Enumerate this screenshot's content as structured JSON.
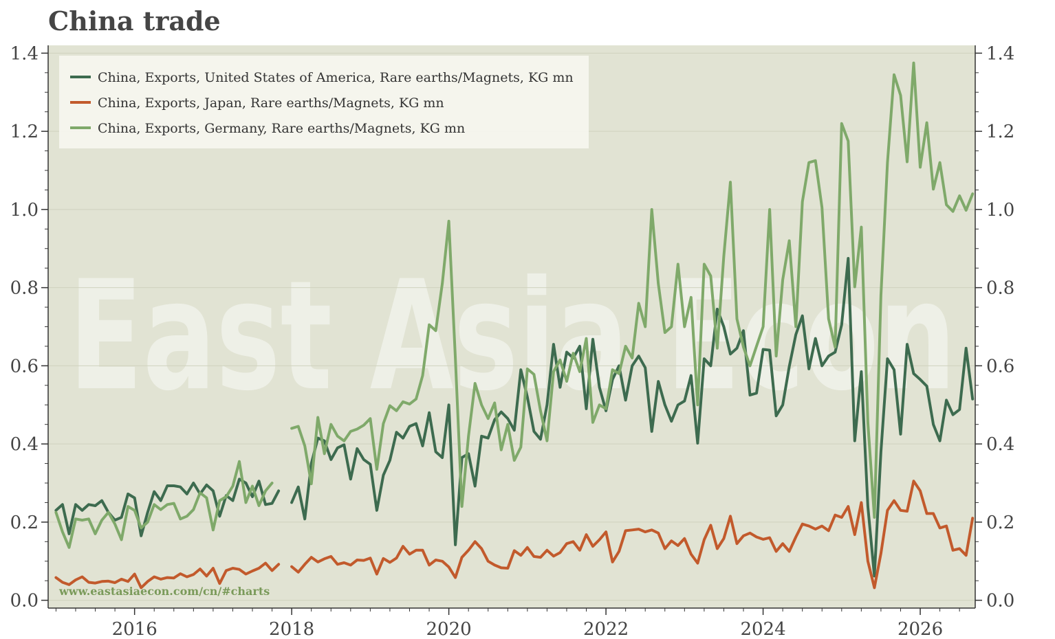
{
  "chart_data": {
    "type": "line",
    "title": "China trade",
    "watermark": "East Asia Econ",
    "source": "www.eastasiaecon.com/cn/#charts",
    "xlabel": "",
    "ylabel": "",
    "xlim": [
      2014.9,
      2026.7
    ],
    "ylim": [
      -0.02,
      1.42
    ],
    "x_ticks": [
      2016,
      2018,
      2020,
      2022,
      2024,
      2026
    ],
    "y_ticks": [
      0.0,
      0.2,
      0.4,
      0.6,
      0.8,
      1.0,
      1.2,
      1.4
    ],
    "y_tick_labels": [
      "0.0",
      "0.2",
      "0.4",
      "0.6",
      "0.8",
      "1.0",
      "1.2",
      "1.4"
    ],
    "grid": true,
    "legend_position": "top-left",
    "colors": {
      "plot_bg": "#e1e3d3",
      "grid": "#cfd2be"
    },
    "series": [
      {
        "name": "China, Exports, United States of America, Rare earths/Magnets, KG mn",
        "color": "#3d6b4f",
        "segments": [
          {
            "start": 2015.0,
            "values": [
              0.23,
              0.245,
              0.17,
              0.245,
              0.23,
              0.245,
              0.242,
              0.255,
              0.225,
              0.205,
              0.212,
              0.272,
              0.262,
              0.165,
              0.225,
              0.278,
              0.255,
              0.293,
              0.293,
              0.29,
              0.272,
              0.3,
              0.272,
              0.295,
              0.28,
              0.215,
              0.268,
              0.255,
              0.31,
              0.3,
              0.265,
              0.305,
              0.245,
              0.248,
              0.28
            ]
          },
          {
            "start": 2018.0,
            "values": [
              0.25,
              0.29,
              0.208,
              0.35,
              0.415,
              0.408,
              0.36,
              0.39,
              0.398,
              0.31,
              0.388,
              0.36,
              0.348,
              0.23,
              0.32,
              0.358,
              0.43,
              0.415,
              0.445,
              0.452,
              0.395,
              0.48,
              0.38,
              0.365,
              0.5,
              0.142,
              0.365,
              0.375,
              0.292,
              0.42,
              0.415,
              0.462,
              0.482,
              0.465,
              0.435,
              0.59,
              0.52,
              0.432,
              0.412,
              0.5,
              0.655,
              0.545,
              0.635,
              0.62,
              0.65,
              0.49,
              0.668,
              0.545,
              0.485,
              0.565,
              0.6,
              0.512,
              0.6,
              0.625,
              0.595,
              0.432,
              0.56,
              0.5,
              0.458,
              0.5,
              0.51,
              0.575,
              0.402,
              0.618,
              0.6,
              0.745,
              0.7,
              0.63,
              0.645,
              0.69,
              0.525,
              0.53,
              0.642,
              0.64,
              0.472,
              0.5,
              0.598,
              0.68,
              0.728,
              0.592,
              0.67,
              0.6,
              0.625,
              0.635,
              0.705,
              0.875,
              0.408,
              0.585,
              0.24,
              0.062,
              0.38,
              0.618,
              0.59,
              0.425,
              0.655,
              0.58,
              0.565,
              0.548,
              0.45,
              0.408,
              0.512,
              0.475,
              0.488,
              0.645,
              0.515
            ]
          }
        ]
      },
      {
        "name": "China, Exports, Japan, Rare earths/Magnets, KG mn",
        "color": "#c25a2c",
        "segments": [
          {
            "start": 2015.0,
            "values": [
              0.058,
              0.046,
              0.04,
              0.052,
              0.06,
              0.046,
              0.044,
              0.048,
              0.049,
              0.045,
              0.054,
              0.048,
              0.067,
              0.032,
              0.048,
              0.06,
              0.054,
              0.058,
              0.057,
              0.068,
              0.06,
              0.066,
              0.08,
              0.062,
              0.082,
              0.043,
              0.076,
              0.082,
              0.079,
              0.067,
              0.075,
              0.082,
              0.095,
              0.076,
              0.092
            ]
          },
          {
            "start": 2018.0,
            "values": [
              0.086,
              0.072,
              0.092,
              0.11,
              0.098,
              0.106,
              0.112,
              0.092,
              0.096,
              0.09,
              0.103,
              0.102,
              0.108,
              0.067,
              0.107,
              0.097,
              0.108,
              0.138,
              0.118,
              0.128,
              0.128,
              0.09,
              0.103,
              0.1,
              0.085,
              0.058,
              0.11,
              0.128,
              0.15,
              0.132,
              0.1,
              0.09,
              0.083,
              0.082,
              0.127,
              0.115,
              0.135,
              0.112,
              0.11,
              0.128,
              0.113,
              0.122,
              0.145,
              0.15,
              0.128,
              0.168,
              0.138,
              0.155,
              0.175,
              0.098,
              0.125,
              0.178,
              0.18,
              0.182,
              0.175,
              0.18,
              0.172,
              0.132,
              0.152,
              0.14,
              0.158,
              0.118,
              0.095,
              0.155,
              0.192,
              0.132,
              0.158,
              0.215,
              0.145,
              0.165,
              0.172,
              0.162,
              0.156,
              0.16,
              0.125,
              0.145,
              0.125,
              0.162,
              0.195,
              0.19,
              0.182,
              0.19,
              0.178,
              0.218,
              0.212,
              0.24,
              0.168,
              0.25,
              0.1,
              0.032,
              0.12,
              0.23,
              0.255,
              0.23,
              0.228,
              0.305,
              0.28,
              0.222,
              0.222,
              0.185,
              0.19,
              0.128,
              0.132,
              0.115,
              0.21
            ]
          }
        ]
      },
      {
        "name": "China, Exports, Germany, Rare earths/Magnets, KG mn",
        "color": "#7fa96a",
        "segments": [
          {
            "start": 2015.0,
            "values": [
              0.225,
              0.175,
              0.135,
              0.208,
              0.205,
              0.208,
              0.17,
              0.205,
              0.225,
              0.195,
              0.155,
              0.24,
              0.23,
              0.185,
              0.2,
              0.245,
              0.232,
              0.245,
              0.248,
              0.208,
              0.215,
              0.232,
              0.275,
              0.262,
              0.18,
              0.255,
              0.265,
              0.292,
              0.355,
              0.25,
              0.292,
              0.242,
              0.28,
              0.3
            ]
          },
          {
            "start": 2018.0,
            "values": [
              0.44,
              0.445,
              0.395,
              0.298,
              0.468,
              0.375,
              0.45,
              0.42,
              0.408,
              0.432,
              0.438,
              0.448,
              0.465,
              0.335,
              0.452,
              0.498,
              0.485,
              0.508,
              0.502,
              0.515,
              0.575,
              0.705,
              0.69,
              0.81,
              0.97,
              0.62,
              0.24,
              0.42,
              0.555,
              0.5,
              0.465,
              0.505,
              0.385,
              0.45,
              0.358,
              0.392,
              0.592,
              0.578,
              0.485,
              0.408,
              0.585,
              0.615,
              0.56,
              0.632,
              0.585,
              0.67,
              0.455,
              0.5,
              0.49,
              0.59,
              0.58,
              0.65,
              0.62,
              0.76,
              0.7,
              1.0,
              0.81,
              0.685,
              0.7,
              0.86,
              0.7,
              0.775,
              0.5,
              0.86,
              0.83,
              0.645,
              0.88,
              1.07,
              0.72,
              0.648,
              0.6,
              0.65,
              0.7,
              1.0,
              0.625,
              0.82,
              0.92,
              0.7,
              1.02,
              1.12,
              1.125,
              1.005,
              0.72,
              0.648,
              1.22,
              1.175,
              0.802,
              0.955,
              0.455,
              0.212,
              0.78,
              1.12,
              1.345,
              1.292,
              1.122,
              1.375,
              1.108,
              1.222,
              1.052,
              1.12,
              1.012,
              0.995,
              1.035,
              0.998,
              1.04
            ]
          }
        ]
      }
    ]
  }
}
